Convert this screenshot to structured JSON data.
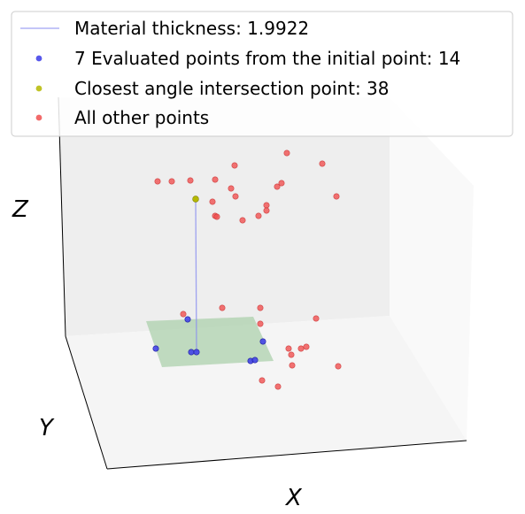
{
  "chart_data": {
    "type": "scatter",
    "projection": "3d",
    "xlabel": "X",
    "ylabel": "Y",
    "zlabel": "Z",
    "grid": false,
    "legend_position": "top",
    "legend": [
      {
        "label": "Material thickness: 1.9922",
        "kind": "line",
        "color": "#8a8ff0"
      },
      {
        "label": "7 Evaluated points from the initial point: 14",
        "kind": "marker",
        "color": "#3b3be8"
      },
      {
        "label": "Closest angle intersection point: 38",
        "kind": "marker",
        "color": "#b5b800"
      },
      {
        "label": "All other points",
        "kind": "marker",
        "color": "#f05050"
      }
    ],
    "plane": {
      "color": "#a8cfa8"
    },
    "colors": {
      "evaluated": "#3b3be8",
      "closest": "#b5b800",
      "others": "#f05050",
      "thickness_line": "#8a8ff0",
      "pane_back": "#eeeeee",
      "pane_left": "#e9e9e9",
      "pane_floor": "#f5f5f5"
    }
  }
}
